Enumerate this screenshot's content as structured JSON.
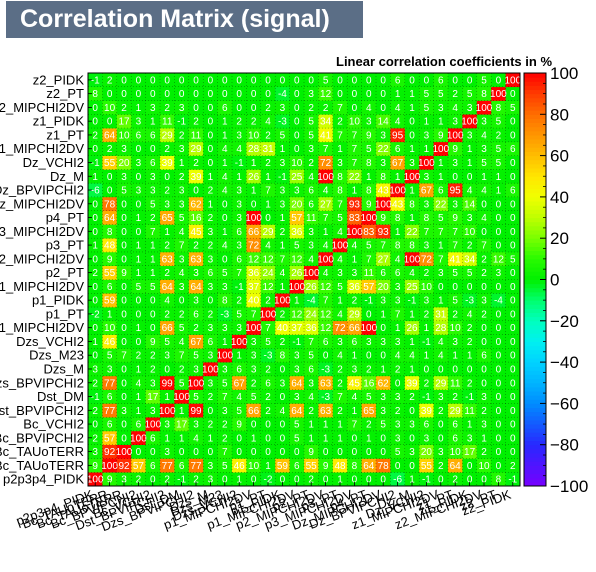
{
  "title": "Correlation Matrix (signal)",
  "subtitle": "Linear correlation coefficients in %",
  "chart_data": {
    "type": "heatmap",
    "variables": [
      "p2p3p4_PIDK",
      "Bc_TAUoTERR",
      "Bc_TAUoTERR",
      "Bc_BPVIPCHI2",
      "Bc_VCHI2",
      "Dst_BPVIPCHI2",
      "Dst_DM",
      "Dzs_BPVIPCHI2",
      "Dzs_M",
      "Dzs_M23",
      "Dzs_VCHI2",
      "p1_MIPCHI2DV",
      "p1_PT",
      "p1_PIDK",
      "p1_MIPCHI2DV",
      "p2_PT",
      "p2_MIPCHI2DV",
      "p3_PT",
      "p3_MIPCHI2DV",
      "p4_PT",
      "Dz_MIPCHI2DV",
      "Dz_BPVIPCHI2",
      "Dz_M",
      "Dz_VCHI2",
      "z1_MIPCHI2DV",
      "z1_PT",
      "z1_PIDK",
      "z2_MIPCHI2DV",
      "z2_PT",
      "z2_PIDK"
    ],
    "values": [
      [
        100,
        9,
        3,
        2,
        0,
        2,
        -1,
        2,
        3,
        0,
        1,
        0,
        -2,
        0,
        0,
        2,
        0,
        1,
        0,
        0,
        0,
        -6,
        1,
        -1,
        0,
        2,
        0,
        0,
        8,
        -1
      ],
      [
        9,
        100,
        92,
        57,
        6,
        77,
        6,
        77,
        3,
        5,
        46,
        10,
        1,
        59,
        6,
        55,
        9,
        48,
        8,
        64,
        78,
        0,
        0,
        55,
        2,
        64,
        0,
        10,
        0,
        2
      ],
      [
        3,
        92,
        100,
        0,
        0,
        3,
        0,
        0,
        0,
        7,
        0,
        0,
        0,
        0,
        0,
        9,
        0,
        0,
        0,
        0,
        0,
        5,
        3,
        20,
        3,
        10,
        17,
        2,
        0,
        0
      ],
      [
        2,
        57,
        0,
        100,
        6,
        1,
        1,
        4,
        1,
        2,
        0,
        1,
        0,
        0,
        5,
        1,
        1,
        1,
        0,
        1,
        0,
        3,
        0,
        3,
        0,
        6,
        3,
        1,
        0,
        0
      ],
      [
        0,
        6,
        0,
        6,
        100,
        3,
        17,
        3,
        2,
        2,
        9,
        0,
        0,
        0,
        5,
        1,
        1,
        1,
        7,
        2,
        5,
        3,
        3,
        6,
        0,
        6,
        1,
        3,
        0,
        0
      ],
      [
        2,
        77,
        3,
        1,
        3,
        100,
        1,
        99,
        0,
        3,
        5,
        66,
        2,
        4,
        64,
        2,
        63,
        2,
        1,
        65,
        3,
        2,
        0,
        39,
        2,
        29,
        11,
        2,
        0,
        0
      ],
      [
        -1,
        6,
        0,
        1,
        17,
        1,
        100,
        5,
        2,
        7,
        4,
        5,
        2,
        0,
        3,
        4,
        -3,
        7,
        4,
        5,
        3,
        3,
        2,
        -1,
        3,
        2,
        -1,
        3,
        0,
        0
      ],
      [
        2,
        77,
        0,
        4,
        3,
        99,
        5,
        100,
        3,
        5,
        67,
        2,
        6,
        3,
        64,
        3,
        63,
        2,
        45,
        16,
        62,
        0,
        39,
        2,
        29,
        11,
        2,
        0,
        0,
        0
      ],
      [
        3,
        3,
        0,
        1,
        2,
        0,
        2,
        3,
        100,
        3,
        6,
        3,
        2,
        0,
        3,
        6,
        -3,
        2,
        3,
        2,
        1,
        2,
        1,
        0,
        0,
        0,
        0,
        0,
        0,
        0
      ],
      [
        0,
        5,
        7,
        2,
        2,
        3,
        7,
        5,
        3,
        100,
        1,
        3,
        -3,
        8,
        3,
        5,
        0,
        4,
        1,
        0,
        0,
        4,
        4,
        1,
        4,
        1,
        1,
        6,
        0,
        0
      ],
      [
        1,
        46,
        0,
        0,
        9,
        5,
        4,
        67,
        6,
        1,
        100,
        3,
        5,
        2,
        -1,
        7,
        6,
        3,
        6,
        3,
        3,
        3,
        1,
        -1,
        4,
        3,
        2,
        0,
        0,
        0
      ],
      [
        0,
        10,
        0,
        1,
        0,
        66,
        5,
        2,
        3,
        3,
        3,
        100,
        7,
        40,
        37,
        36,
        12,
        72,
        66,
        100,
        0,
        1,
        26,
        1,
        28,
        10,
        2,
        0,
        0,
        0
      ],
      [
        -2,
        1,
        0,
        0,
        0,
        2,
        2,
        6,
        2,
        -3,
        5,
        7,
        100,
        2,
        12,
        24,
        12,
        4,
        29,
        0,
        1,
        7,
        1,
        2,
        31,
        2,
        4,
        2,
        0,
        0
      ],
      [
        0,
        59,
        0,
        0,
        0,
        4,
        0,
        3,
        0,
        8,
        2,
        40,
        2,
        100,
        1,
        -4,
        7,
        1,
        2,
        -1,
        3,
        3,
        -1,
        3,
        1,
        5,
        -3,
        3,
        -4,
        0
      ],
      [
        0,
        6,
        0,
        5,
        5,
        64,
        3,
        64,
        3,
        3,
        -1,
        37,
        12,
        1,
        100,
        26,
        12,
        5,
        36,
        57,
        20,
        3,
        25,
        10,
        0,
        0,
        0,
        0,
        0,
        0
      ],
      [
        2,
        55,
        9,
        1,
        1,
        2,
        4,
        3,
        6,
        5,
        7,
        36,
        24,
        4,
        26,
        100,
        4,
        3,
        3,
        11,
        6,
        6,
        4,
        2,
        3,
        5,
        5,
        2,
        3,
        0
      ],
      [
        0,
        9,
        0,
        1,
        1,
        63,
        3,
        63,
        3,
        0,
        6,
        12,
        12,
        7,
        12,
        4,
        100,
        4,
        1,
        7,
        27,
        4,
        100,
        72,
        7,
        41,
        34,
        2,
        12,
        5
      ],
      [
        1,
        48,
        0,
        1,
        1,
        2,
        7,
        2,
        2,
        4,
        3,
        72,
        4,
        1,
        5,
        3,
        4,
        100,
        4,
        5,
        7,
        8,
        8,
        3,
        1,
        7,
        2,
        7,
        0,
        0
      ],
      [
        0,
        8,
        0,
        0,
        7,
        1,
        4,
        45,
        3,
        1,
        6,
        66,
        29,
        2,
        36,
        3,
        1,
        4,
        100,
        83,
        93,
        1,
        22,
        7,
        7,
        7,
        10,
        0,
        0,
        0
      ],
      [
        0,
        64,
        0,
        1,
        2,
        65,
        5,
        16,
        2,
        0,
        3,
        100,
        0,
        1,
        57,
        11,
        7,
        5,
        83,
        100,
        9,
        8,
        1,
        8,
        5,
        9,
        3,
        4,
        0,
        0
      ],
      [
        0,
        78,
        0,
        0,
        5,
        3,
        3,
        62,
        1,
        0,
        3,
        0,
        1,
        3,
        20,
        6,
        27,
        7,
        93,
        9,
        100,
        43,
        8,
        3,
        22,
        3,
        14,
        0,
        0,
        0
      ],
      [
        -6,
        0,
        5,
        3,
        3,
        2,
        3,
        0,
        2,
        4,
        3,
        1,
        7,
        3,
        3,
        6,
        4,
        8,
        1,
        8,
        43,
        100,
        1,
        67,
        6,
        95,
        4,
        4,
        1,
        6
      ],
      [
        1,
        0,
        3,
        0,
        3,
        0,
        2,
        39,
        1,
        4,
        1,
        26,
        1,
        -1,
        25,
        4,
        100,
        8,
        22,
        1,
        8,
        1,
        100,
        3,
        1,
        0,
        0,
        1,
        1,
        0
      ],
      [
        -1,
        55,
        20,
        3,
        6,
        39,
        1,
        2,
        0,
        1,
        -1,
        1,
        2,
        3,
        10,
        2,
        72,
        3,
        7,
        8,
        3,
        67,
        3,
        100,
        1,
        3,
        1,
        5,
        5,
        0
      ],
      [
        0,
        2,
        3,
        0,
        0,
        2,
        3,
        29,
        0,
        4,
        4,
        28,
        31,
        1,
        0,
        3,
        7,
        1,
        7,
        5,
        22,
        6,
        1,
        1,
        100,
        9,
        1,
        3,
        5,
        6
      ],
      [
        2,
        64,
        10,
        6,
        6,
        29,
        2,
        11,
        0,
        1,
        3,
        10,
        2,
        5,
        0,
        5,
        41,
        7,
        7,
        9,
        3,
        95,
        0,
        3,
        9,
        100,
        3,
        4,
        2,
        0
      ],
      [
        0,
        0,
        17,
        3,
        1,
        11,
        -1,
        2,
        0,
        1,
        2,
        2,
        4,
        -3,
        0,
        5,
        34,
        2,
        10,
        3,
        14,
        4,
        0,
        1,
        1,
        3,
        100,
        3,
        5,
        0
      ],
      [
        0,
        10,
        2,
        1,
        3,
        2,
        3,
        0,
        0,
        6,
        0,
        0,
        2,
        3,
        0,
        2,
        2,
        7,
        0,
        4,
        0,
        4,
        1,
        5,
        3,
        4,
        3,
        100,
        8,
        5
      ],
      [
        8,
        0,
        0,
        0,
        0,
        0,
        0,
        0,
        0,
        0,
        0,
        0,
        0,
        -4,
        0,
        3,
        12,
        0,
        0,
        0,
        0,
        1,
        1,
        5,
        5,
        2,
        5,
        8,
        100,
        0
      ],
      [
        -1,
        2,
        0,
        0,
        0,
        0,
        0,
        0,
        0,
        0,
        0,
        0,
        0,
        0,
        0,
        0,
        5,
        0,
        0,
        0,
        0,
        6,
        0,
        0,
        6,
        0,
        0,
        5,
        0,
        100
      ]
    ],
    "zlim": [
      -100,
      100
    ],
    "z_ticks": [
      -100,
      -80,
      -60,
      -40,
      -20,
      0,
      20,
      40,
      60,
      80,
      100
    ],
    "grid": true
  }
}
